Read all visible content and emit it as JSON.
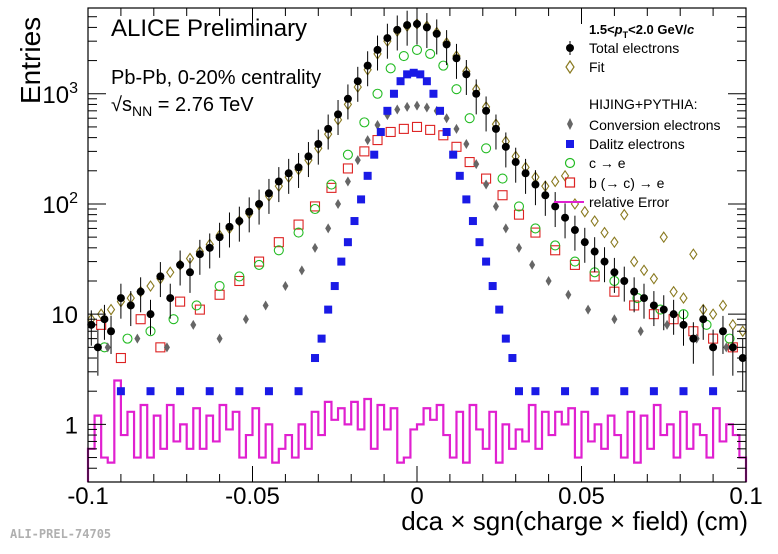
{
  "chart_data": {
    "type": "scatter",
    "title": "ALICE Preliminary",
    "subtitle_lines": [
      "Pb-Pb, 0-20% centrality",
      "√s",
      "NN",
      " = 2.76 TeV"
    ],
    "pt_label": [
      "1.5<",
      "p",
      "T",
      "<2.0 GeV/",
      "c"
    ],
    "model_label": "HIJING+PYTHIA:",
    "xlabel": "dca × sgn(charge × field) (cm)",
    "ylabel": "Entries",
    "xlim": [
      -0.1,
      0.1
    ],
    "ylim": [
      0.3,
      6000
    ],
    "yscale": "log",
    "grid": false,
    "legend_position": "top-right",
    "credit": "ALI-PREL-74705",
    "x_ticks": [
      {
        "value": -0.1,
        "label": "-0.1"
      },
      {
        "value": -0.05,
        "label": "-0.05"
      },
      {
        "value": 0,
        "label": "0"
      },
      {
        "value": 0.05,
        "label": "0.05"
      },
      {
        "value": 0.1,
        "label": "0.1"
      }
    ],
    "y_ticks": [
      {
        "value": 1,
        "label": "1"
      },
      {
        "value": 10,
        "label": "10"
      },
      {
        "value": 100,
        "label": "10",
        "sup": "2"
      },
      {
        "value": 1000,
        "label": "10",
        "sup": "3"
      }
    ],
    "series": [
      {
        "name": "Total electrons",
        "marker": "circle-filled",
        "color": "#000000",
        "error_bars": true,
        "x": [
          -0.099,
          -0.097,
          -0.095,
          -0.093,
          -0.09,
          -0.087,
          -0.084,
          -0.081,
          -0.078,
          -0.075,
          -0.072,
          -0.069,
          -0.066,
          -0.063,
          -0.06,
          -0.057,
          -0.054,
          -0.051,
          -0.048,
          -0.045,
          -0.042,
          -0.039,
          -0.036,
          -0.033,
          -0.03,
          -0.027,
          -0.024,
          -0.021,
          -0.018,
          -0.015,
          -0.012,
          -0.009,
          -0.006,
          -0.003,
          0,
          0.003,
          0.006,
          0.009,
          0.012,
          0.015,
          0.018,
          0.021,
          0.024,
          0.027,
          0.03,
          0.033,
          0.036,
          0.039,
          0.042,
          0.045,
          0.048,
          0.051,
          0.054,
          0.057,
          0.06,
          0.063,
          0.066,
          0.069,
          0.072,
          0.075,
          0.078,
          0.081,
          0.084,
          0.087,
          0.09,
          0.093,
          0.096,
          0.099
        ],
        "y": [
          8,
          5,
          9,
          7,
          14,
          12,
          16,
          10,
          22,
          14,
          28,
          24,
          35,
          40,
          50,
          62,
          70,
          85,
          100,
          125,
          160,
          190,
          215,
          270,
          350,
          480,
          650,
          900,
          1300,
          1800,
          2500,
          3200,
          3800,
          4200,
          4300,
          4000,
          3500,
          2800,
          2100,
          1500,
          1000,
          700,
          480,
          330,
          240,
          190,
          150,
          120,
          95,
          75,
          58,
          45,
          37,
          30,
          24,
          20,
          16,
          14,
          12,
          11,
          10,
          8,
          6,
          9,
          5,
          7,
          5,
          4
        ]
      },
      {
        "name": "Fit",
        "marker": "diamond-open",
        "color": "#8a7a20",
        "x": [
          -0.099,
          -0.096,
          -0.093,
          -0.09,
          -0.087,
          -0.084,
          -0.081,
          -0.078,
          -0.075,
          -0.072,
          -0.069,
          -0.066,
          -0.063,
          -0.06,
          -0.057,
          -0.054,
          -0.051,
          -0.048,
          -0.045,
          -0.042,
          -0.039,
          -0.036,
          -0.033,
          -0.03,
          -0.027,
          -0.024,
          -0.021,
          -0.018,
          -0.015,
          -0.012,
          -0.009,
          -0.006,
          -0.003,
          0,
          0.003,
          0.006,
          0.009,
          0.012,
          0.015,
          0.018,
          0.021,
          0.024,
          0.027,
          0.03,
          0.033,
          0.036,
          0.039,
          0.042,
          0.045,
          0.048,
          0.051,
          0.054,
          0.057,
          0.06,
          0.063,
          0.066,
          0.069,
          0.072,
          0.075,
          0.078,
          0.081,
          0.084,
          0.087,
          0.09,
          0.093,
          0.096,
          0.099
        ],
        "y": [
          9,
          10,
          11,
          13,
          14,
          16,
          18,
          21,
          24,
          28,
          32,
          37,
          43,
          52,
          60,
          70,
          82,
          98,
          118,
          145,
          175,
          205,
          250,
          320,
          430,
          580,
          800,
          1150,
          1650,
          2300,
          3000,
          3700,
          4100,
          4300,
          4100,
          3600,
          2900,
          2200,
          1600,
          1100,
          760,
          530,
          370,
          270,
          215,
          175,
          145,
          160,
          180,
          100,
          85,
          70,
          55,
          45,
          80,
          30,
          25,
          21,
          50,
          16,
          14,
          35,
          11,
          10,
          12,
          8,
          7
        ]
      },
      {
        "name": "Conversion electrons",
        "marker": "diamond-filled",
        "color": "#666666",
        "x": [
          -0.094,
          -0.085,
          -0.076,
          -0.068,
          -0.06,
          -0.052,
          -0.046,
          -0.04,
          -0.035,
          -0.031,
          -0.027,
          -0.024,
          -0.021,
          -0.018,
          -0.015,
          -0.012,
          -0.009,
          -0.006,
          -0.003,
          0,
          0.003,
          0.006,
          0.009,
          0.012,
          0.015,
          0.018,
          0.021,
          0.024,
          0.027,
          0.031,
          0.035,
          0.04,
          0.046,
          0.052,
          0.06,
          0.068,
          0.076,
          0.085,
          0.094
        ],
        "y": [
          5,
          6,
          5,
          8,
          6,
          9,
          12,
          18,
          25,
          40,
          60,
          100,
          160,
          250,
          380,
          520,
          640,
          720,
          760,
          780,
          750,
          700,
          600,
          480,
          350,
          230,
          150,
          95,
          60,
          40,
          28,
          20,
          15,
          11,
          9,
          7,
          8,
          6,
          5
        ]
      },
      {
        "name": "Dalitz electrons",
        "marker": "square-filled",
        "color": "#1a1ae6",
        "x": [
          -0.09,
          -0.081,
          -0.072,
          -0.063,
          -0.054,
          -0.045,
          -0.036,
          -0.031,
          -0.029,
          -0.027,
          -0.025,
          -0.023,
          -0.021,
          -0.019,
          -0.017,
          -0.015,
          -0.013,
          -0.011,
          -0.009,
          -0.007,
          -0.005,
          -0.003,
          -0.001,
          0.001,
          0.003,
          0.005,
          0.007,
          0.009,
          0.011,
          0.013,
          0.015,
          0.017,
          0.019,
          0.021,
          0.023,
          0.025,
          0.027,
          0.029,
          0.031,
          0.036,
          0.045,
          0.054,
          0.063,
          0.072,
          0.081,
          0.09
        ],
        "y": [
          2,
          2,
          2,
          2,
          2,
          2,
          2,
          4,
          6,
          11,
          18,
          30,
          45,
          70,
          110,
          180,
          280,
          450,
          700,
          1000,
          1300,
          1500,
          1550,
          1500,
          1300,
          1000,
          700,
          450,
          280,
          180,
          110,
          70,
          45,
          30,
          18,
          11,
          6,
          4,
          2,
          2,
          2,
          2,
          2,
          2,
          2,
          2
        ]
      },
      {
        "name": "c → e",
        "marker": "circle-open",
        "color": "#22bb22",
        "x": [
          -0.095,
          -0.088,
          -0.081,
          -0.074,
          -0.067,
          -0.06,
          -0.054,
          -0.048,
          -0.042,
          -0.036,
          -0.031,
          -0.026,
          -0.021,
          -0.016,
          -0.012,
          -0.008,
          -0.004,
          0,
          0.004,
          0.008,
          0.012,
          0.016,
          0.021,
          0.026,
          0.031,
          0.036,
          0.042,
          0.048,
          0.054,
          0.06,
          0.067,
          0.074,
          0.081,
          0.088,
          0.095
        ],
        "y": [
          5,
          6,
          7,
          9,
          12,
          18,
          22,
          28,
          38,
          55,
          90,
          150,
          280,
          550,
          1000,
          1700,
          2200,
          2500,
          2300,
          1800,
          1100,
          600,
          320,
          170,
          95,
          60,
          42,
          30,
          24,
          20,
          14,
          11,
          10,
          8,
          6
        ]
      },
      {
        "name": "b (→ c) → e",
        "marker": "square-open",
        "color": "#dd2222",
        "x": [
          -0.096,
          -0.09,
          -0.084,
          -0.078,
          -0.072,
          -0.066,
          -0.06,
          -0.054,
          -0.048,
          -0.042,
          -0.036,
          -0.031,
          -0.026,
          -0.021,
          -0.016,
          -0.012,
          -0.008,
          -0.004,
          0,
          0.004,
          0.008,
          0.012,
          0.016,
          0.021,
          0.026,
          0.031,
          0.036,
          0.042,
          0.048,
          0.054,
          0.06,
          0.066,
          0.072,
          0.078,
          0.084,
          0.09,
          0.096
        ],
        "y": [
          8,
          4,
          9,
          5,
          13,
          11,
          15,
          20,
          30,
          45,
          65,
          95,
          140,
          210,
          300,
          380,
          450,
          480,
          500,
          470,
          420,
          330,
          240,
          170,
          120,
          80,
          55,
          38,
          28,
          22,
          16,
          12,
          10,
          9,
          7,
          6,
          5
        ]
      },
      {
        "name": "relative Error",
        "marker": "step-line",
        "color": "#e020d0",
        "x": [
          -0.1,
          -0.098,
          -0.096,
          -0.094,
          -0.092,
          -0.09,
          -0.088,
          -0.086,
          -0.084,
          -0.082,
          -0.08,
          -0.078,
          -0.076,
          -0.074,
          -0.072,
          -0.07,
          -0.068,
          -0.066,
          -0.064,
          -0.062,
          -0.06,
          -0.058,
          -0.056,
          -0.054,
          -0.052,
          -0.05,
          -0.048,
          -0.046,
          -0.044,
          -0.042,
          -0.04,
          -0.038,
          -0.036,
          -0.034,
          -0.032,
          -0.03,
          -0.028,
          -0.026,
          -0.024,
          -0.022,
          -0.02,
          -0.018,
          -0.016,
          -0.014,
          -0.012,
          -0.01,
          -0.008,
          -0.006,
          -0.004,
          -0.002,
          0,
          0.002,
          0.004,
          0.006,
          0.008,
          0.01,
          0.012,
          0.014,
          0.016,
          0.018,
          0.02,
          0.022,
          0.024,
          0.026,
          0.028,
          0.03,
          0.032,
          0.034,
          0.036,
          0.038,
          0.04,
          0.042,
          0.044,
          0.046,
          0.048,
          0.05,
          0.052,
          0.054,
          0.056,
          0.058,
          0.06,
          0.062,
          0.064,
          0.066,
          0.068,
          0.07,
          0.072,
          0.074,
          0.076,
          0.078,
          0.08,
          0.082,
          0.084,
          0.086,
          0.088,
          0.09,
          0.092,
          0.094,
          0.096,
          0.098
        ],
        "y": [
          0.6,
          1.2,
          0.5,
          0.45,
          2.5,
          0.8,
          1.3,
          0.5,
          1.5,
          0.5,
          1.2,
          0.6,
          1.5,
          0.7,
          1.0,
          0.6,
          1.4,
          0.6,
          1.2,
          0.7,
          1.5,
          0.9,
          1.3,
          0.5,
          0.8,
          1.4,
          0.5,
          1.0,
          0.45,
          0.6,
          0.8,
          0.5,
          1.0,
          0.6,
          1.3,
          0.8,
          1.6,
          1.1,
          1.4,
          1.0,
          1.6,
          0.9,
          1.7,
          0.6,
          1.5,
          0.9,
          1.4,
          0.45,
          0.5,
          0.9,
          1.0,
          1.4,
          1.1,
          1.5,
          0.8,
          0.5,
          1.3,
          0.45,
          1.5,
          0.9,
          0.6,
          1.3,
          0.45,
          1.0,
          0.6,
          0.9,
          0.7,
          1.5,
          0.6,
          1.3,
          0.8,
          1.3,
          1.0,
          1.4,
          0.5,
          1.3,
          0.7,
          1.0,
          0.6,
          1.2,
          0.8,
          0.5,
          1.3,
          0.45,
          1.2,
          0.6,
          1.5,
          0.8,
          1.0,
          0.5,
          1.3,
          0.6,
          1.0,
          0.8,
          0.5,
          1.4,
          0.7,
          1.0,
          0.8,
          0.5
        ]
      }
    ]
  }
}
